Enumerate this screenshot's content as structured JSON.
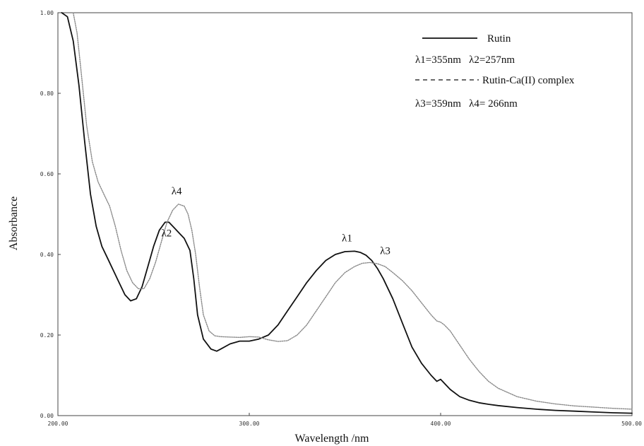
{
  "chart_data": {
    "type": "line",
    "xlabel": "Wavelength /nm",
    "ylabel": "Absorbance",
    "xlim": [
      200,
      500
    ],
    "ylim": [
      0,
      1
    ],
    "x_ticks": [
      "200.00",
      "300.00",
      "400.00",
      "500.00"
    ],
    "y_ticks": [
      "0.00",
      "0.20",
      "0.40",
      "0.60",
      "0.80",
      "1.00"
    ],
    "grid": false,
    "legend_position": "top-right",
    "legend": [
      {
        "label": "Rutin",
        "detail": "λ1=355nm   λ2=257nm"
      },
      {
        "label": "Rutin-Ca(II) complex",
        "detail": "λ3=359nm   λ4= 266nm"
      }
    ],
    "series": [
      {
        "name": "Rutin",
        "style": "solid",
        "color": "#111111",
        "x": [
          202,
          205,
          208,
          211,
          214,
          217,
          220,
          223,
          226,
          229,
          232,
          235,
          238,
          241,
          244,
          247,
          250,
          253,
          256,
          258,
          261,
          264,
          266,
          269,
          271,
          273,
          276,
          280,
          283,
          285,
          290,
          295,
          300,
          305,
          310,
          315,
          320,
          325,
          330,
          335,
          340,
          345,
          350,
          355,
          358,
          361,
          364,
          367,
          370,
          375,
          380,
          385,
          390,
          395,
          398,
          400,
          401,
          403,
          405,
          410,
          415,
          420,
          425,
          430,
          440,
          450,
          460,
          470,
          480,
          490,
          500
        ],
        "y": [
          1.0,
          0.99,
          0.93,
          0.82,
          0.68,
          0.55,
          0.47,
          0.42,
          0.39,
          0.36,
          0.33,
          0.3,
          0.285,
          0.29,
          0.32,
          0.37,
          0.42,
          0.46,
          0.48,
          0.48,
          0.465,
          0.45,
          0.44,
          0.41,
          0.34,
          0.25,
          0.19,
          0.165,
          0.16,
          0.165,
          0.178,
          0.185,
          0.185,
          0.19,
          0.2,
          0.225,
          0.26,
          0.295,
          0.33,
          0.36,
          0.385,
          0.4,
          0.407,
          0.408,
          0.405,
          0.398,
          0.385,
          0.365,
          0.34,
          0.29,
          0.23,
          0.17,
          0.13,
          0.1,
          0.085,
          0.09,
          0.085,
          0.075,
          0.065,
          0.047,
          0.038,
          0.032,
          0.028,
          0.025,
          0.02,
          0.016,
          0.013,
          0.011,
          0.009,
          0.007,
          0.006
        ]
      },
      {
        "name": "Rutin-Ca(II) complex",
        "style": "dotted",
        "color": "#888888",
        "x": [
          208,
          210,
          212,
          215,
          218,
          221,
          224,
          227,
          230,
          233,
          236,
          239,
          242,
          245,
          248,
          251,
          254,
          257,
          260,
          263,
          266,
          268,
          270,
          272,
          274,
          276,
          279,
          282,
          285,
          290,
          295,
          300,
          305,
          310,
          315,
          320,
          325,
          330,
          335,
          340,
          345,
          350,
          355,
          359,
          363,
          367,
          371,
          375,
          380,
          385,
          390,
          395,
          398,
          400,
          402,
          405,
          410,
          415,
          420,
          425,
          430,
          440,
          450,
          460,
          470,
          480,
          490,
          500
        ],
        "y": [
          1.0,
          0.95,
          0.86,
          0.72,
          0.63,
          0.58,
          0.55,
          0.52,
          0.47,
          0.41,
          0.36,
          0.33,
          0.315,
          0.315,
          0.34,
          0.38,
          0.43,
          0.48,
          0.51,
          0.525,
          0.52,
          0.5,
          0.46,
          0.4,
          0.32,
          0.25,
          0.21,
          0.198,
          0.196,
          0.195,
          0.194,
          0.196,
          0.195,
          0.188,
          0.184,
          0.186,
          0.2,
          0.225,
          0.26,
          0.295,
          0.33,
          0.355,
          0.37,
          0.378,
          0.38,
          0.377,
          0.37,
          0.355,
          0.335,
          0.31,
          0.28,
          0.25,
          0.235,
          0.232,
          0.225,
          0.21,
          0.175,
          0.14,
          0.11,
          0.085,
          0.068,
          0.047,
          0.036,
          0.029,
          0.024,
          0.021,
          0.018,
          0.016
        ]
      }
    ],
    "annotations": [
      {
        "text": "λ1",
        "x": 355,
        "y": 0.408
      },
      {
        "text": "λ2",
        "x": 257,
        "y": 0.48
      },
      {
        "text": "λ3",
        "x": 372,
        "y": 0.38
      },
      {
        "text": "λ4",
        "x": 263,
        "y": 0.525
      }
    ]
  }
}
